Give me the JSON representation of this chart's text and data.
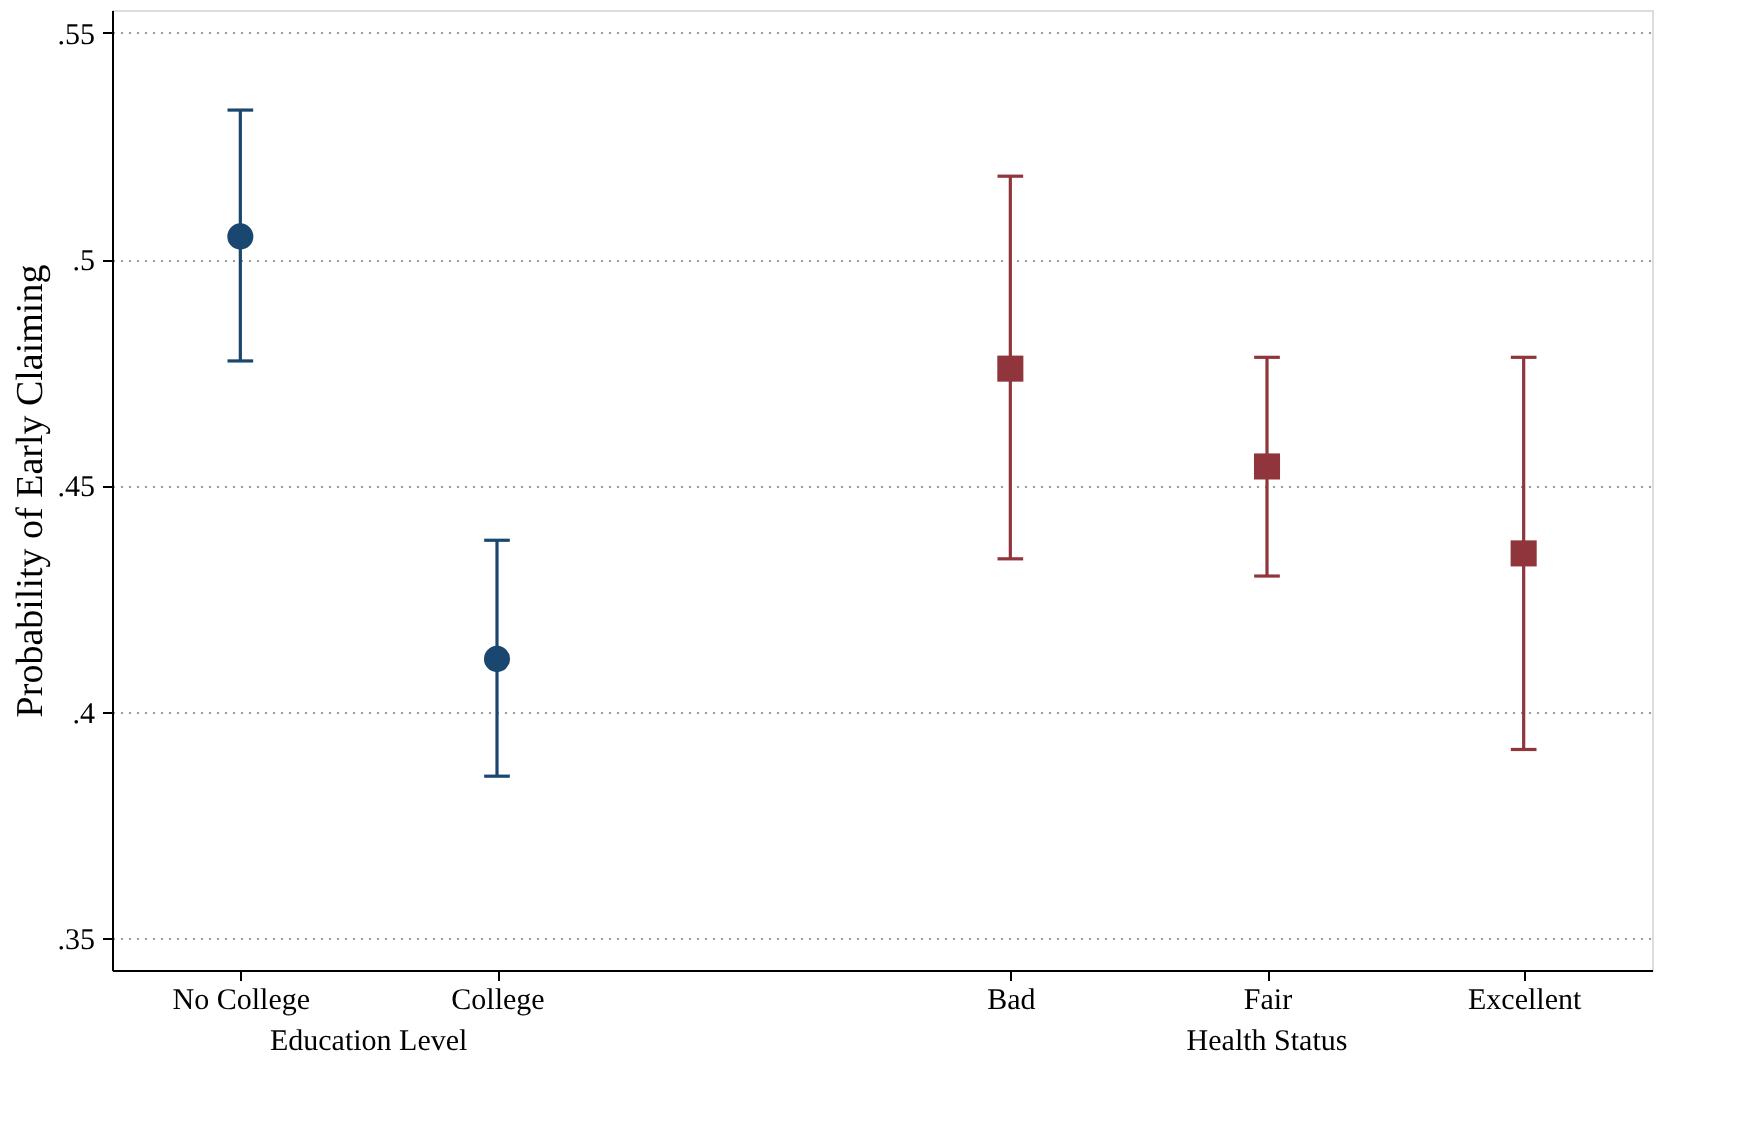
{
  "chart_data": {
    "type": "scatter",
    "ylabel": "Probability of Early Claiming",
    "categories": [
      "No College",
      "College",
      null,
      "Bad",
      "Fair",
      "Excellent"
    ],
    "series": [
      {
        "color": "#1a476f",
        "marker": "circle",
        "values": [
          0.505,
          0.4117,
          null,
          null,
          null,
          null
        ],
        "errors": [
          [
            0.4775,
            0.5329
          ],
          [
            0.3858,
            0.4379
          ],
          null,
          null,
          null,
          null
        ]
      },
      {
        "color": "#90353b",
        "marker": "square",
        "values": [
          null,
          null,
          null,
          0.4758,
          0.4542,
          0.435
        ],
        "errors": [
          null,
          null,
          null,
          [
            0.4338,
            0.5183
          ],
          [
            0.43,
            0.4783
          ],
          [
            0.3917,
            0.4783
          ]
        ]
      }
    ],
    "annotations": [
      "Education Level",
      "Health Status"
    ],
    "ylim": [
      0.343,
      0.555
    ],
    "yticks": [
      {
        "value": 0.35,
        "label": ".35"
      },
      {
        "value": 0.4,
        "label": ".4"
      },
      {
        "value": 0.45,
        "label": ".45"
      },
      {
        "value": 0.5,
        "label": ".5"
      },
      {
        "value": 0.55,
        "label": ".55"
      }
    ],
    "grid": "y"
  }
}
